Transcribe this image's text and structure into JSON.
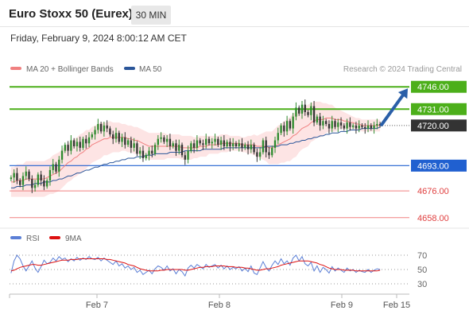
{
  "header": {
    "title": "Euro Stoxx 50 (Eurex)",
    "timeframe": "30 MIN",
    "datetime": "Friday, February 9, 2024 8:00:12 AM CET",
    "credit": "Research © 2024 Trading Central"
  },
  "legend": {
    "items": [
      {
        "label": "MA 20 + Bollinger Bands",
        "color": "#f08080"
      },
      {
        "label": "MA 50",
        "color": "#2a5599"
      }
    ]
  },
  "rsi_legend": [
    {
      "label": "RSI",
      "color": "#5b7fd6"
    },
    {
      "label": "9MA",
      "color": "#dd1111"
    }
  ],
  "colors": {
    "bullish": "#2e8b2e",
    "bearish": "#333333",
    "band_fill": "#fde4e4",
    "resistance": "#4caf1a",
    "pivot": "#2060d0",
    "support": "#f08080",
    "last_price": "#333333",
    "arrow": "#2a5fa8"
  },
  "chart_data": {
    "type": "candlestick",
    "symbol": "Euro Stoxx 50 (Eurex)",
    "timeframe": "30 MIN",
    "ylim": [
      4652,
      4752
    ],
    "x_ticks": [
      "Feb 7",
      "Feb 8",
      "Feb 9",
      "Feb 15"
    ],
    "last_price": 4720.0,
    "levels": [
      {
        "label": "4746.00",
        "value": 4746.0,
        "role": "resistance"
      },
      {
        "label": "4731.00",
        "value": 4731.0,
        "role": "resistance"
      },
      {
        "label": "4693.00",
        "value": 4693.0,
        "role": "pivot"
      },
      {
        "label": "4676.00",
        "value": 4676.0,
        "role": "support"
      },
      {
        "label": "4658.00",
        "value": 4658.0,
        "role": "support"
      }
    ],
    "arrow_target": 4746.0,
    "closes": [
      4685,
      4688,
      4683,
      4680,
      4686,
      4689,
      4684,
      4678,
      4680,
      4687,
      4683,
      4679,
      4683,
      4690,
      4694,
      4689,
      4697,
      4703,
      4707,
      4703,
      4710,
      4706,
      4709,
      4705,
      4711,
      4708,
      4712,
      4714,
      4717,
      4721,
      4716,
      4720,
      4718,
      4714,
      4711,
      4715,
      4709,
      4712,
      4707,
      4710,
      4705,
      4708,
      4701,
      4703,
      4698,
      4700,
      4703,
      4701,
      4707,
      4711,
      4712,
      4709,
      4711,
      4706,
      4708,
      4703,
      4707,
      4700,
      4697,
      4703,
      4708,
      4705,
      4710,
      4708,
      4707,
      4711,
      4708,
      4709,
      4711,
      4707,
      4710,
      4706,
      4709,
      4706,
      4708,
      4706,
      4708,
      4705,
      4707,
      4704,
      4707,
      4702,
      4699,
      4702,
      4710,
      4702,
      4700,
      4705,
      4710,
      4715,
      4720,
      4716,
      4723,
      4718,
      4726,
      4732,
      4728,
      4734,
      4729,
      4727,
      4733,
      4722,
      4726,
      4720,
      4723,
      4721,
      4718,
      4723,
      4719,
      4722,
      4720,
      4718,
      4722,
      4719,
      4720,
      4718,
      4720,
      4719,
      4718,
      4720,
      4718,
      4720,
      4721,
      4720
    ],
    "ma20": [
      4682,
      4682,
      4683,
      4683,
      4683,
      4684,
      4684,
      4684,
      4684,
      4684,
      4684,
      4684,
      4685,
      4686,
      4687,
      4688,
      4689,
      4691,
      4693,
      4695,
      4696,
      4698,
      4699,
      4701,
      4702,
      4704,
      4705,
      4707,
      4708,
      4709,
      4710,
      4711,
      4711,
      4712,
      4712,
      4712,
      4712,
      4712,
      4712,
      4711,
      4711,
      4710,
      4710,
      4709,
      4708,
      4707,
      4706,
      4706,
      4706,
      4706,
      4706,
      4706,
      4706,
      4706,
      4706,
      4706,
      4706,
      4705,
      4705,
      4705,
      4705,
      4705,
      4705,
      4706,
      4706,
      4706,
      4707,
      4707,
      4707,
      4707,
      4708,
      4708,
      4708,
      4708,
      4708,
      4708,
      4708,
      4707,
      4707,
      4707,
      4707,
      4707,
      4706,
      4706,
      4706,
      4706,
      4705,
      4705,
      4706,
      4707,
      4708,
      4709,
      4710,
      4711,
      4713,
      4714,
      4716,
      4718,
      4719,
      4720,
      4722,
      4723,
      4724,
      4724,
      4724,
      4725,
      4725,
      4725,
      4724,
      4724,
      4724,
      4723,
      4723,
      4722,
      4722,
      4721,
      4721,
      4720,
      4720,
      4720,
      4720,
      4720,
      4720,
      4720
    ],
    "ma50": [
      4678,
      4678,
      4679,
      4679,
      4679,
      4680,
      4680,
      4680,
      4681,
      4681,
      4681,
      4682,
      4682,
      4682,
      4683,
      4683,
      4684,
      4684,
      4685,
      4686,
      4686,
      4687,
      4688,
      4688,
      4689,
      4690,
      4690,
      4691,
      4692,
      4692,
      4693,
      4694,
      4694,
      4695,
      4695,
      4696,
      4696,
      4697,
      4697,
      4698,
      4698,
      4698,
      4699,
      4699,
      4699,
      4700,
      4700,
      4700,
      4701,
      4701,
      4701,
      4701,
      4701,
      4702,
      4702,
      4702,
      4702,
      4702,
      4703,
      4703,
      4703,
      4703,
      4703,
      4703,
      4704,
      4704,
      4704,
      4704,
      4704,
      4704,
      4704,
      4705,
      4705,
      4705,
      4705,
      4705,
      4705,
      4705,
      4705,
      4705,
      4705,
      4705,
      4705,
      4705,
      4705,
      4706,
      4706,
      4706,
      4706,
      4706,
      4707,
      4707,
      4707,
      4708,
      4708,
      4709,
      4709,
      4710,
      4710,
      4711,
      4711,
      4712,
      4712,
      4713,
      4713,
      4714,
      4714,
      4715,
      4715,
      4715,
      4716,
      4716,
      4716,
      4717,
      4717,
      4717,
      4717,
      4718,
      4718,
      4718,
      4718,
      4718,
      4718,
      4719
    ],
    "band_width": [
      10,
      10,
      11,
      11,
      11,
      12,
      12,
      12,
      12,
      12,
      12,
      12,
      12,
      12,
      13,
      13,
      13,
      13,
      13,
      13,
      13,
      13,
      13,
      13,
      13,
      13,
      12,
      12,
      12,
      12,
      12,
      11,
      11,
      11,
      10,
      10,
      10,
      9,
      9,
      9,
      9,
      9,
      9,
      9,
      9,
      9,
      9,
      9,
      9,
      9,
      9,
      9,
      8,
      8,
      8,
      8,
      8,
      8,
      8,
      8,
      8,
      7,
      7,
      7,
      7,
      7,
      6,
      6,
      6,
      6,
      6,
      6,
      6,
      5,
      5,
      5,
      5,
      5,
      5,
      6,
      6,
      7,
      7,
      8,
      9,
      10,
      11,
      11,
      12,
      13,
      13,
      14,
      14,
      15,
      15,
      15,
      14,
      14,
      14,
      14,
      13,
      13,
      12,
      12,
      11,
      10,
      9,
      9,
      8,
      7,
      6,
      6,
      5,
      5,
      4,
      4,
      4,
      4,
      4,
      4,
      4,
      4,
      4,
      4
    ],
    "rsi": {
      "ylim": [
        20,
        80
      ],
      "ticks": [
        70,
        50,
        30
      ],
      "rsi": [
        45,
        62,
        70,
        65,
        55,
        48,
        55,
        62,
        52,
        46,
        54,
        63,
        58,
        60,
        66,
        62,
        68,
        64,
        66,
        61,
        65,
        62,
        67,
        63,
        66,
        64,
        68,
        65,
        64,
        67,
        62,
        66,
        63,
        60,
        57,
        62,
        55,
        58,
        52,
        55,
        50,
        53,
        46,
        49,
        43,
        46,
        49,
        44,
        51,
        55,
        53,
        49,
        55,
        48,
        51,
        44,
        50,
        47,
        41,
        52,
        56,
        52,
        57,
        54,
        51,
        57,
        53,
        55,
        57,
        52,
        56,
        51,
        55,
        50,
        53,
        51,
        54,
        48,
        52,
        47,
        55,
        45,
        43,
        52,
        61,
        53,
        48,
        56,
        62,
        57,
        65,
        58,
        62,
        56,
        66,
        70,
        62,
        68,
        58,
        55,
        60,
        48,
        55,
        46,
        53,
        50,
        45,
        54,
        48,
        52,
        49,
        46,
        52,
        48,
        50,
        46,
        49,
        47,
        46,
        50,
        46,
        49,
        51,
        50
      ],
      "ma9": [
        48,
        49,
        51,
        53,
        54,
        55,
        56,
        57,
        57,
        56,
        56,
        57,
        58,
        59,
        60,
        61,
        62,
        63,
        63,
        63,
        64,
        64,
        64,
        65,
        65,
        65,
        65,
        65,
        65,
        65,
        65,
        65,
        64,
        64,
        63,
        62,
        61,
        60,
        59,
        57,
        56,
        55,
        53,
        51,
        50,
        49,
        48,
        48,
        48,
        48,
        49,
        49,
        50,
        50,
        50,
        50,
        50,
        50,
        49,
        49,
        50,
        51,
        52,
        53,
        53,
        54,
        54,
        54,
        55,
        55,
        55,
        55,
        54,
        54,
        54,
        53,
        53,
        53,
        52,
        52,
        51,
        50,
        49,
        49,
        50,
        51,
        51,
        52,
        53,
        54,
        56,
        57,
        58,
        59,
        60,
        61,
        62,
        62,
        62,
        62,
        61,
        60,
        59,
        57,
        56,
        54,
        52,
        51,
        50,
        50,
        50,
        49,
        49,
        49,
        49,
        48,
        48,
        48,
        48,
        48,
        48,
        48,
        48,
        49
      ]
    }
  }
}
